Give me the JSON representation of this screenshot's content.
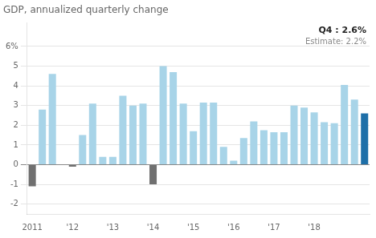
{
  "chart_data": {
    "type": "bar",
    "title": "GDP, annualized quarterly change",
    "categories": [
      "2011",
      null,
      null,
      null,
      "'12",
      null,
      null,
      null,
      "'13",
      null,
      null,
      null,
      "'14",
      null,
      null,
      null,
      "'15",
      null,
      null,
      null,
      "'16",
      null,
      null,
      null,
      "'17",
      null,
      null,
      null,
      "'18",
      null,
      null,
      null,
      null,
      null
    ],
    "values": [
      -1.1,
      2.8,
      4.6,
      0.0,
      -0.1,
      1.5,
      3.1,
      0.4,
      0.4,
      3.5,
      3.0,
      3.1,
      -1.0,
      5.0,
      4.7,
      3.1,
      1.7,
      3.15,
      3.15,
      0.9,
      0.2,
      1.35,
      2.2,
      1.75,
      1.65,
      1.65,
      3.0,
      2.9,
      2.65,
      2.15,
      2.1,
      4.05,
      3.3,
      2.6
    ],
    "colors": [
      "#707070",
      "#a8d4e8",
      "#a8d4e8",
      "#a8d4e8",
      "#707070",
      "#a8d4e8",
      "#a8d4e8",
      "#a8d4e8",
      "#a8d4e8",
      "#a8d4e8",
      "#a8d4e8",
      "#a8d4e8",
      "#707070",
      "#a8d4e8",
      "#a8d4e8",
      "#a8d4e8",
      "#a8d4e8",
      "#a8d4e8",
      "#a8d4e8",
      "#a8d4e8",
      "#a8d4e8",
      "#a8d4e8",
      "#a8d4e8",
      "#a8d4e8",
      "#a8d4e8",
      "#a8d4e8",
      "#a8d4e8",
      "#a8d4e8",
      "#a8d4e8",
      "#a8d4e8",
      "#a8d4e8",
      "#a8d4e8",
      "#a8d4e8",
      "#1e6fa8"
    ],
    "ylim": [
      -2.5,
      7.2
    ],
    "yticks": [
      -2,
      -1,
      0,
      1,
      2,
      3,
      4,
      5,
      {
        "value": 6,
        "label": "6%"
      }
    ],
    "grid": true,
    "annotations": [
      "Q4 : 2.6%",
      "Estimate: 2.2%"
    ]
  }
}
